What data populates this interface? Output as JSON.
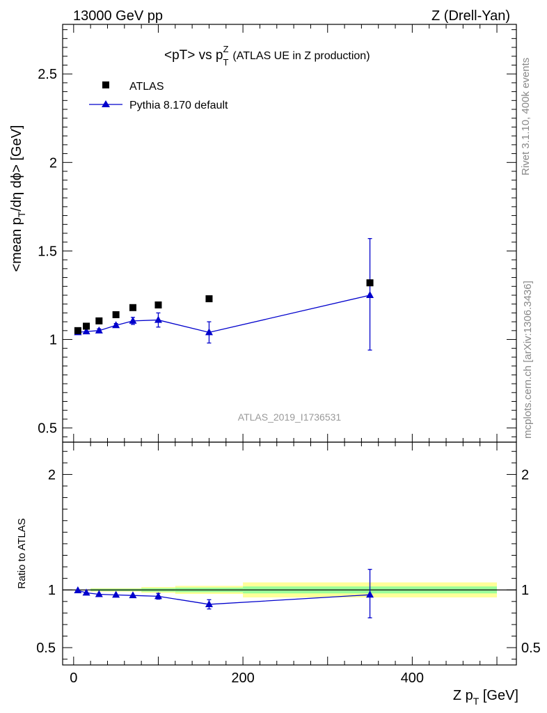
{
  "header": {
    "left": "13000 GeV pp",
    "right": "Z (Drell-Yan)"
  },
  "plot_title": {
    "main": "<pT> vs p",
    "sup": "Z",
    "sub": "T",
    "suffix": "(ATLAS UE in Z production)"
  },
  "side_labels": {
    "rivet": "Rivet 3.1.10,  400k events",
    "mcplots": "mcplots.cern.ch [arXiv:1306.3436]"
  },
  "watermark": "ATLAS_2019_I1736531",
  "axes": {
    "ylabel_main": "<mean p",
    "ylabel_sub": "T",
    "ylabel_tail": "/dη dϕ> [GeV]",
    "ylabel_ratio": "Ratio to ATLAS",
    "xlabel_main": "Z p",
    "xlabel_sub": "T",
    "xlabel_tail": " [GeV]"
  },
  "legend": {
    "data_label": "ATLAS",
    "mc_label": "Pythia 8.170 default"
  },
  "colors": {
    "data": "#000000",
    "mc": "#0000cc",
    "band_inner": "#99ff99",
    "band_outer": "#ffff99"
  },
  "chart_data": [
    {
      "type": "scatter",
      "panel": "main",
      "xlabel": "Z pT [GeV]",
      "ylabel": "<mean pT/dη dϕ> [GeV]",
      "xlim": [
        -13,
        523
      ],
      "ylim": [
        0.42,
        2.78
      ],
      "x_ticks": [
        0,
        200,
        400
      ],
      "y_ticks": [
        0.5,
        1,
        1.5,
        2,
        2.5
      ],
      "y_tick_labels": [
        "0.5",
        "1",
        "1.5",
        "2",
        "2.5"
      ],
      "legend_position": "top-left",
      "series": [
        {
          "name": "ATLAS",
          "marker": "square",
          "x": [
            5,
            15,
            30,
            50,
            70,
            100,
            160,
            350
          ],
          "y": [
            1.05,
            1.075,
            1.105,
            1.14,
            1.18,
            1.195,
            1.23,
            1.32
          ]
        },
        {
          "name": "Pythia 8.170 default",
          "marker": "triangle",
          "x": [
            5,
            15,
            30,
            50,
            70,
            100,
            160,
            350
          ],
          "y": [
            1.04,
            1.045,
            1.05,
            1.08,
            1.105,
            1.11,
            1.04,
            1.25
          ],
          "err_lo": [
            0.005,
            0.005,
            0.01,
            0.01,
            0.02,
            0.04,
            0.06,
            0.31
          ],
          "err_hi": [
            0.005,
            0.005,
            0.01,
            0.01,
            0.02,
            0.04,
            0.06,
            0.32
          ]
        }
      ]
    },
    {
      "type": "scatter",
      "panel": "ratio",
      "xlabel": "Z pT [GeV]",
      "ylabel": "Ratio to ATLAS",
      "xlim": [
        -13,
        523
      ],
      "ylim": [
        0.35,
        2.28
      ],
      "x_ticks": [
        0,
        200,
        400
      ],
      "x_tick_labels": [
        "0",
        "200",
        "400"
      ],
      "y_ticks": [
        0.5,
        1,
        2
      ],
      "y_tick_labels": [
        "0.5",
        "1",
        "2"
      ],
      "bands": [
        {
          "x0": 20,
          "x1": 80,
          "inner": [
            0.99,
            1.01
          ],
          "outer": [
            0.985,
            1.015
          ]
        },
        {
          "x0": 80,
          "x1": 120,
          "inner": [
            0.985,
            1.015
          ],
          "outer": [
            0.975,
            1.025
          ]
        },
        {
          "x0": 120,
          "x1": 200,
          "inner": [
            0.98,
            1.02
          ],
          "outer": [
            0.965,
            1.035
          ]
        },
        {
          "x0": 200,
          "x1": 500,
          "inner": [
            0.97,
            1.03
          ],
          "outer": [
            0.935,
            1.065
          ]
        }
      ],
      "series": [
        {
          "name": "Pythia 8.170 default",
          "marker": "triangle",
          "x": [
            5,
            15,
            30,
            50,
            70,
            100,
            160,
            350
          ],
          "y": [
            0.995,
            0.975,
            0.962,
            0.957,
            0.952,
            0.945,
            0.875,
            0.958
          ],
          "err_lo": [
            0.005,
            0.008,
            0.008,
            0.008,
            0.01,
            0.025,
            0.04,
            0.2
          ],
          "err_hi": [
            0.005,
            0.008,
            0.008,
            0.008,
            0.01,
            0.025,
            0.04,
            0.22
          ]
        }
      ]
    }
  ]
}
